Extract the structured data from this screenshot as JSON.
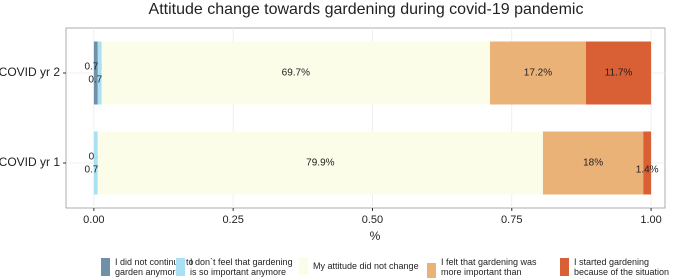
{
  "chart_data": {
    "type": "stacked-bar-horizontal",
    "title": "Attitude change towards gardening during covid-19 pandemic",
    "x_label": "%",
    "categories": [
      "COVID yr 2",
      "COVID yr 1"
    ],
    "series": [
      {
        "name": "I did not continue to garden anymore",
        "color": "#6f90a6",
        "values": [
          0.007,
          0
        ],
        "value_labels": [
          "0.7%",
          "0%"
        ]
      },
      {
        "name": "I don`t feel that gardening is so important anymore",
        "color": "#a9e0f3",
        "values": [
          0.007,
          0.007
        ],
        "value_labels": [
          "0.7%",
          "0.7%"
        ]
      },
      {
        "name": "My attitude did not change",
        "color": "#fbfde9",
        "values": [
          0.697,
          0.799
        ],
        "value_labels": [
          "69.7%",
          "79.9%"
        ]
      },
      {
        "name": "I felt that gardening was more important than before",
        "color": "#ebb277",
        "values": [
          0.172,
          0.18
        ],
        "value_labels": [
          "17.2%",
          "18%"
        ]
      },
      {
        "name": "I started gardening because of the situation",
        "color": "#d95f35",
        "values": [
          0.117,
          0.014
        ],
        "value_labels": [
          "11.7%",
          "1.4%"
        ]
      }
    ],
    "xlim": [
      -0.05,
      1.025
    ],
    "xticks": [
      {
        "value": 0,
        "label": "0.00"
      },
      {
        "value": 0.25,
        "label": "0.25"
      },
      {
        "value": 0.5,
        "label": "0.50"
      },
      {
        "value": 0.75,
        "label": "0.75"
      },
      {
        "value": 1,
        "label": "1.00"
      }
    ],
    "grid": true
  }
}
